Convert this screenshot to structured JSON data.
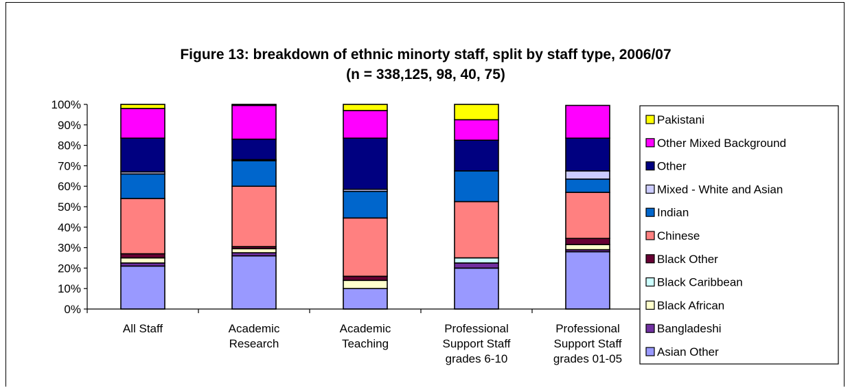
{
  "chart_data": {
    "type": "bar",
    "stacked": true,
    "percent_stacked": true,
    "title": "Figure 13: breakdown of ethnic minorty staff, split by staff type, 2006/07",
    "subtitle": "(n = 338,125, 98, 40, 75)",
    "ylim": [
      0,
      100
    ],
    "y_ticks": [
      "0%",
      "10%",
      "20%",
      "30%",
      "40%",
      "50%",
      "60%",
      "70%",
      "80%",
      "90%",
      "100%"
    ],
    "y_tick_values": [
      0,
      10,
      20,
      30,
      40,
      50,
      60,
      70,
      80,
      90,
      100
    ],
    "categories": [
      [
        "All Staff"
      ],
      [
        "Academic",
        "Research"
      ],
      [
        "Academic",
        "Teaching"
      ],
      [
        "Professional",
        "Support Staff",
        "grades 6-10"
      ],
      [
        "Professional",
        "Support Staff",
        "grades 01-05"
      ]
    ],
    "grid": false,
    "legend_position": "right",
    "series": [
      {
        "name": "Asian Other",
        "color": "#9999FF",
        "values": [
          21,
          26,
          10,
          20,
          28
        ]
      },
      {
        "name": "Bangladeshi",
        "color": "#7030A0",
        "values": [
          1.5,
          1.5,
          0,
          2.5,
          1
        ]
      },
      {
        "name": "Black African",
        "color": "#FFFFCC",
        "values": [
          2.5,
          2,
          4,
          0,
          2.5
        ]
      },
      {
        "name": "Black Caribbean",
        "color": "#CCFFFF",
        "values": [
          0,
          0,
          0,
          2.5,
          0
        ]
      },
      {
        "name": "Black Other",
        "color": "#660033",
        "values": [
          2,
          1,
          2,
          0,
          3
        ]
      },
      {
        "name": "Chinese",
        "color": "#FF8080",
        "values": [
          27,
          29.5,
          28.5,
          27.5,
          22.5
        ]
      },
      {
        "name": "Indian",
        "color": "#0066CC",
        "values": [
          12,
          12.5,
          13,
          15,
          6.5
        ]
      },
      {
        "name": "Mixed - White and Asian",
        "color": "#CCCCFF",
        "values": [
          1,
          0.5,
          1,
          0,
          4
        ]
      },
      {
        "name": "Other",
        "color": "#000080",
        "values": [
          16.5,
          10,
          25,
          15,
          16
        ]
      },
      {
        "name": "Other Mixed Background",
        "color": "#FF00FF",
        "values": [
          14.5,
          16.5,
          13.5,
          10,
          16
        ]
      },
      {
        "name": "Pakistani",
        "color": "#FFFF00",
        "values": [
          2,
          0.5,
          3,
          7.5,
          0
        ]
      }
    ]
  }
}
